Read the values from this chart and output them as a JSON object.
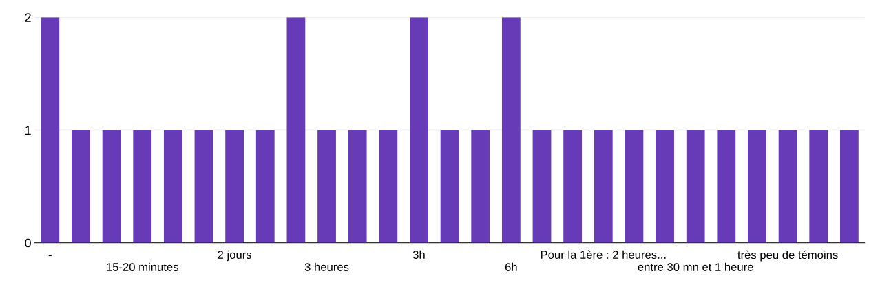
{
  "chart_data": {
    "type": "bar",
    "categories": [
      "-",
      null,
      null,
      "15-20 minutes",
      null,
      null,
      "2 jours",
      null,
      null,
      "3 heures",
      null,
      null,
      "3h",
      null,
      null,
      "6h",
      null,
      null,
      "Pour la 1ère : 2 heures...",
      null,
      null,
      "entre 30 mn et 1 heure",
      null,
      null,
      "très peu de témoins",
      null,
      null
    ],
    "values": [
      2,
      1,
      1,
      1,
      1,
      1,
      1,
      1,
      2,
      1,
      1,
      1,
      2,
      1,
      1,
      2,
      1,
      1,
      1,
      1,
      1,
      1,
      1,
      1,
      1,
      1,
      1
    ],
    "color": "#673ab7",
    "ylim": [
      0,
      2
    ],
    "yticks": [
      0,
      1,
      2
    ],
    "grid": "y"
  }
}
